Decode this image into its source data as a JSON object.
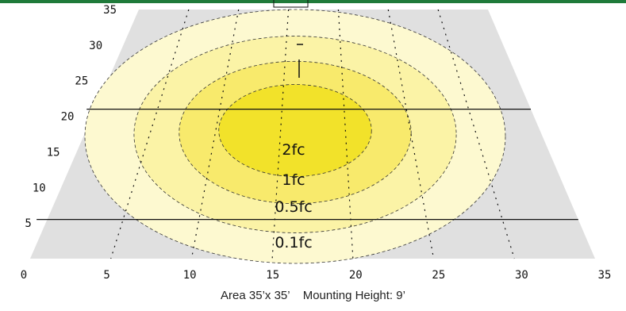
{
  "chart_data": {
    "type": "heatmap",
    "title": "",
    "xlabel": "",
    "ylabel": "",
    "xlim": [
      0,
      35
    ],
    "ylim": [
      0,
      35
    ],
    "x_ticks": [
      "0",
      "5",
      "10",
      "15",
      "20",
      "25",
      "30",
      "35"
    ],
    "y_ticks": [
      "5",
      "10",
      "15",
      "20",
      "25",
      "30",
      "35"
    ],
    "contours": [
      {
        "label": "0.1fc",
        "value": 0.1,
        "color": "#fdf9d0"
      },
      {
        "label": "0.5fc",
        "value": 0.5,
        "color": "#fbf3a6"
      },
      {
        "label": "1fc",
        "value": 1,
        "color": "#f8ea6c"
      },
      {
        "label": "2fc",
        "value": 2,
        "color": "#f2e22a"
      }
    ],
    "reference_lines_y": [
      21,
      5.5
    ],
    "caption": {
      "area": "Area 35’x 35’",
      "mounting": "Mounting Height: 9’"
    },
    "colors": {
      "floor": "#e0e0e0",
      "line": "#111111"
    }
  }
}
